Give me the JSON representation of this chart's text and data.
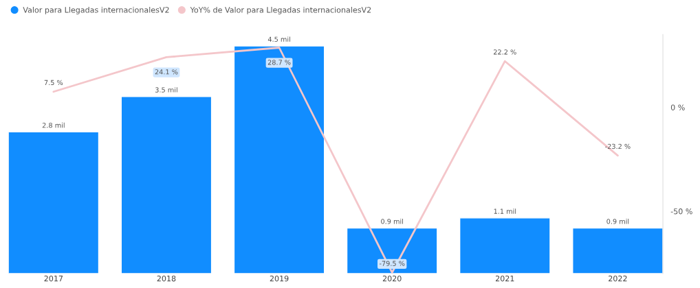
{
  "chart_data": {
    "type": "bar",
    "categories": [
      "2017",
      "2018",
      "2019",
      "2020",
      "2021",
      "2022"
    ],
    "series": [
      {
        "name": "Valor para Llegadas internacionalesV2",
        "color": "#118dff",
        "values": [
          2.8,
          3.5,
          4.5,
          0.9,
          1.1,
          0.9
        ],
        "value_labels": [
          "2.8 mil",
          "3.5 mil",
          "4.5 mil",
          "0.9 mil",
          "1.1 mil",
          "0.9 mil"
        ]
      },
      {
        "name": "YoY% de Valor para Llegadas internacionalesV2",
        "type": "line",
        "axis": "y2",
        "color": "#f4c6ca",
        "values": [
          7.5,
          24.1,
          28.7,
          -79.5,
          22.2,
          -23.2
        ],
        "value_labels": [
          "7.5 %",
          "24.1 %",
          "28.7 %",
          "-79.5 %",
          "22.2 %",
          "-23.2 %"
        ]
      }
    ],
    "y2ticks": [
      {
        "value": 0,
        "label": "0 %"
      },
      {
        "value": -50,
        "label": "-50 %"
      }
    ],
    "y2lim": [
      -80,
      35
    ],
    "legend": "top left",
    "grid": false
  }
}
